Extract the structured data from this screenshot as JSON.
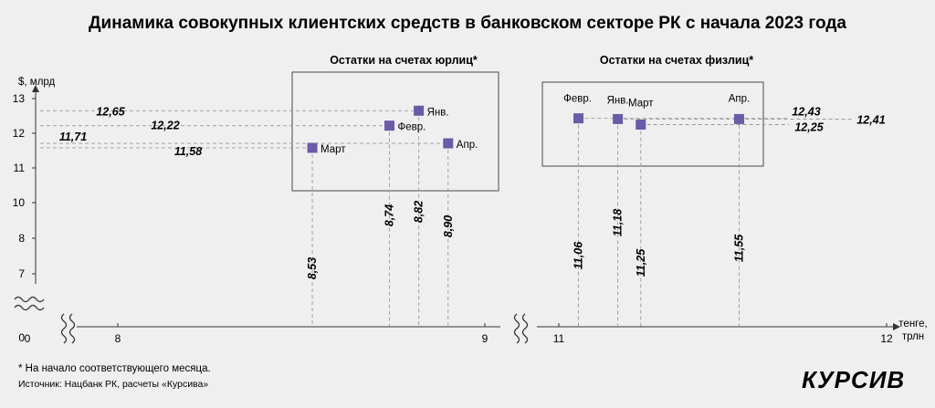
{
  "title": "Динамика совокупных клиентских средств в банковском секторе РК с начала 2023 года",
  "footnote": "* На начало соответствующего месяца.",
  "source": "Источник: Нацбанк РК, расчеты «Курсива»",
  "logo": "КУРСИВ",
  "colors": {
    "marker": "#6a5aa8",
    "guide": "#9a9a9a",
    "text": "#1a1a1a",
    "background": "#efefef"
  },
  "chart_data": {
    "type": "scatter",
    "ylabel": "$, млрд",
    "xlabel": "тенге, трлн",
    "y_ticks": [
      0,
      7,
      8,
      10,
      11,
      12,
      13
    ],
    "x_ticks": [
      0,
      8,
      9,
      11,
      12
    ],
    "y_axis_break": true,
    "x_axis_breaks": true,
    "series": [
      {
        "name": "Остатки на счетах юрлиц*",
        "points": [
          {
            "label": "Янв.",
            "x": 8.82,
            "y": 12.65,
            "x_label": "8,82",
            "y_label": "12,65"
          },
          {
            "label": "Февр.",
            "x": 8.74,
            "y": 12.22,
            "x_label": "8,74",
            "y_label": "12,22"
          },
          {
            "label": "Март",
            "x": 8.53,
            "y": 11.58,
            "x_label": "8,53",
            "y_label": "11,58"
          },
          {
            "label": "Апр.",
            "x": 8.9,
            "y": 11.71,
            "x_label": "8,90",
            "y_label": "11,71"
          }
        ]
      },
      {
        "name": "Остатки на счетах физлиц*",
        "points": [
          {
            "label": "Февр.",
            "x": 11.06,
            "y": 12.43,
            "x_label": "11,06",
            "y_label": "12,43"
          },
          {
            "label": "Янв.",
            "x": 11.18,
            "y": 12.41,
            "x_label": "11,18",
            "y_label": "12,41"
          },
          {
            "label": "Март",
            "x": 11.25,
            "y": 12.25,
            "x_label": "11,25",
            "y_label": "12,25"
          },
          {
            "label": "Апр.",
            "x": 11.55,
            "y": 12.41,
            "x_label": "11,55",
            "y_label": "12,41"
          }
        ]
      }
    ]
  }
}
